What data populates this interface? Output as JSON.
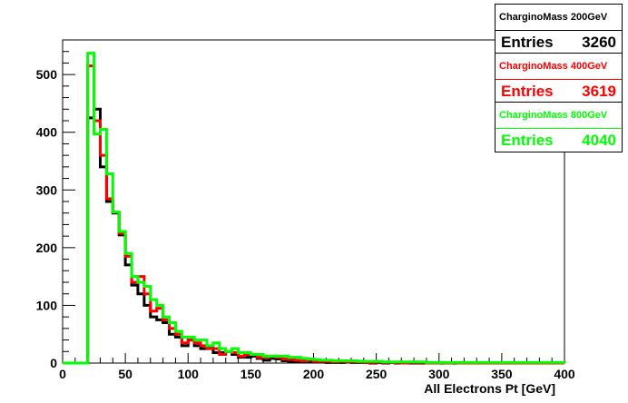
{
  "chart_data": {
    "type": "histogram",
    "xlabel": "All Electrons Pt [GeV]",
    "ylabel": "",
    "title": "",
    "xlim": [
      0,
      400
    ],
    "ylim": [
      0,
      560
    ],
    "bin_width": 5,
    "x_ticks": [
      0,
      50,
      100,
      150,
      200,
      250,
      300,
      350,
      400
    ],
    "y_ticks": [
      0,
      100,
      200,
      300,
      400,
      500
    ],
    "grid": false,
    "legend_position": "top-right",
    "series": [
      {
        "name": "CharginoMass 200GeV",
        "color": "#000000",
        "entries_label": "Entries",
        "entries": "3260",
        "values": [
          0,
          0,
          0,
          0,
          425,
          440,
          340,
          280,
          260,
          222,
          170,
          135,
          120,
          100,
          80,
          75,
          70,
          50,
          45,
          30,
          40,
          30,
          25,
          28,
          18,
          18,
          20,
          15,
          10,
          10,
          12,
          8,
          5,
          8,
          7,
          4,
          3,
          3,
          3,
          2,
          2,
          2,
          1,
          1,
          1,
          2,
          1,
          1,
          1,
          0,
          1,
          0,
          1,
          0,
          0,
          0,
          0,
          0,
          0,
          0,
          0,
          0,
          0,
          0,
          0,
          0,
          0,
          0,
          0,
          0,
          0,
          0,
          0,
          0,
          0,
          0,
          0,
          0,
          0,
          0
        ]
      },
      {
        "name": "CharginoMass 400GeV",
        "color": "#ff0000",
        "entries_label": "Entries",
        "entries": "3619",
        "values": [
          0,
          0,
          0,
          0,
          515,
          420,
          360,
          285,
          262,
          225,
          185,
          140,
          150,
          120,
          90,
          95,
          75,
          60,
          50,
          35,
          40,
          35,
          30,
          25,
          25,
          15,
          20,
          18,
          12,
          15,
          15,
          10,
          10,
          12,
          10,
          7,
          6,
          5,
          4,
          5,
          3,
          3,
          3,
          2,
          3,
          2,
          2,
          2,
          1,
          1,
          2,
          1,
          1,
          1,
          0,
          1,
          1,
          1,
          0,
          0,
          1,
          0,
          1,
          0,
          0,
          0,
          0,
          0,
          0,
          0,
          0,
          0,
          0,
          0,
          0,
          0,
          0,
          0,
          0,
          0
        ]
      },
      {
        "name": "CharginoMass 800GeV",
        "color": "#00ff00",
        "entries_label": "Entries",
        "entries": "4040",
        "values": [
          0,
          0,
          0,
          0,
          537,
          397,
          405,
          328,
          262,
          228,
          190,
          150,
          140,
          133,
          110,
          100,
          80,
          70,
          55,
          45,
          45,
          40,
          40,
          30,
          35,
          25,
          20,
          25,
          18,
          18,
          15,
          15,
          12,
          12,
          12,
          12,
          10,
          10,
          8,
          7,
          6,
          5,
          5,
          4,
          4,
          4,
          4,
          3,
          3,
          3,
          3,
          2,
          2,
          2,
          2,
          2,
          2,
          2,
          1,
          1,
          1,
          1,
          1,
          1,
          1,
          1,
          1,
          1,
          1,
          1,
          1,
          1,
          1,
          1,
          1,
          1,
          1,
          1,
          1,
          1
        ]
      }
    ]
  }
}
